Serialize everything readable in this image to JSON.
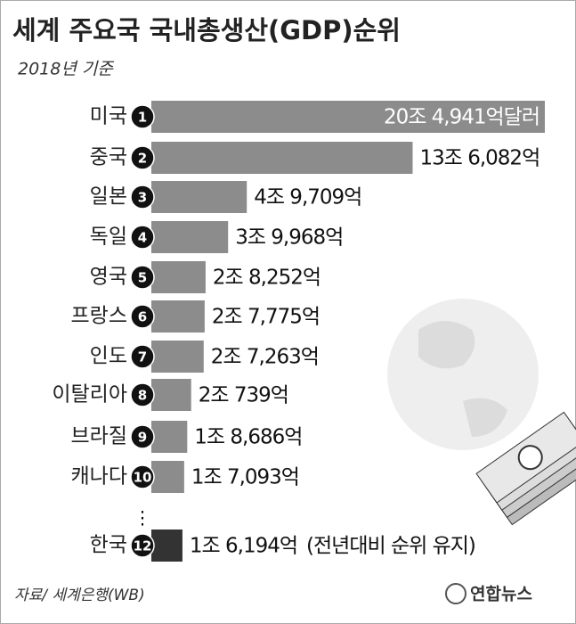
{
  "chart_data": {
    "type": "bar",
    "orientation": "horizontal",
    "title": "세계 주요국 국내총생산(GDP)순위",
    "subtitle": "2018년 기준",
    "categories": [
      "미국",
      "중국",
      "일본",
      "독일",
      "영국",
      "프랑스",
      "인도",
      "이탈리아",
      "브라질",
      "캐나다",
      "한국"
    ],
    "ranks": [
      1,
      2,
      3,
      4,
      5,
      6,
      7,
      8,
      9,
      10,
      12
    ],
    "values": [
      204941,
      136082,
      49709,
      39968,
      28252,
      27775,
      27263,
      20739,
      18686,
      17093,
      16194
    ],
    "value_labels": [
      "20조 4,941억달러",
      "13조 6,082억",
      "4조 9,709억",
      "3조 9,968억",
      "2조 8,252억",
      "2조 7,775억",
      "2조 7,263억",
      "2조 739억",
      "1조 8,686억",
      "1조 7,093억",
      "1조 6,194억"
    ],
    "colors": [
      "#8c8c8c",
      "#8c8c8c",
      "#8c8c8c",
      "#8c8c8c",
      "#8c8c8c",
      "#8c8c8c",
      "#8c8c8c",
      "#8c8c8c",
      "#8c8c8c",
      "#8c8c8c",
      "#333333"
    ],
    "annotation": "(전년대비 순위 유지)",
    "source": "자료/ 세계은행(WB)",
    "publisher": "연합뉴스"
  }
}
